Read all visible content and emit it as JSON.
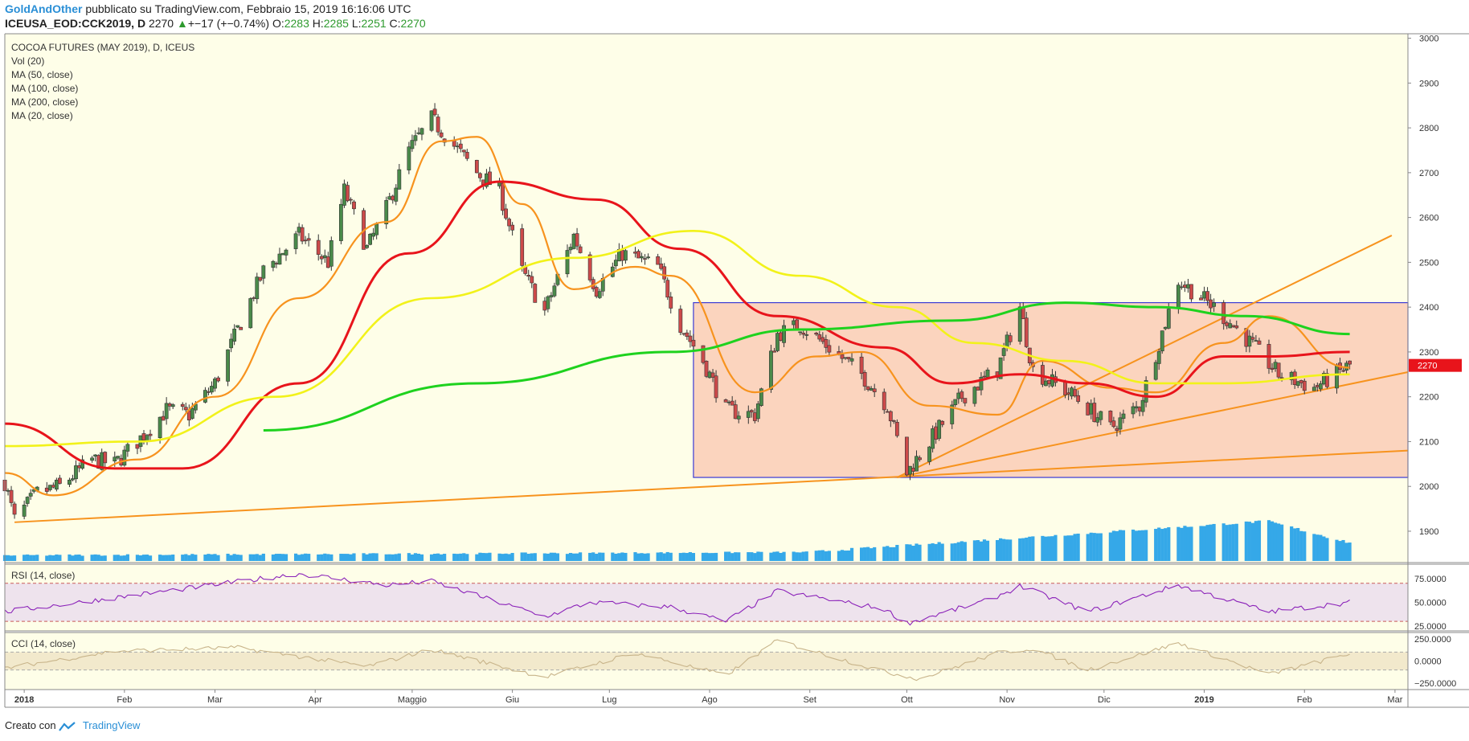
{
  "header": {
    "author": "GoldAndOther",
    "published": "pubblicato su TradingView.com, Febbraio 15, 2019 16:16:06 UTC",
    "symbol": "ICEUSA_EOD:CCK2019, D",
    "last": "2270",
    "change_arrow": "▲",
    "change": "+−17 (+−0.74%)",
    "o_label": "O:",
    "o": "2283",
    "h_label": "H:",
    "h": "2285",
    "l_label": "L:",
    "l": "2251",
    "c_label": "C:",
    "c": "2270"
  },
  "legend": [
    "COCOA FUTURES (MAY 2019), D, ICEUS",
    "Vol (20)",
    "MA (50, close)",
    "MA (100, close)",
    "MA (200, close)",
    "MA (20, close)"
  ],
  "panes": {
    "rsi_title": "RSI (14, close)",
    "cci_title": "CCI (14, close)"
  },
  "footer": {
    "created_with": "Creato con",
    "tradingview": "TradingView"
  },
  "colors": {
    "background": "#fefee8",
    "up_candle": "#4a8a4a",
    "down_candle": "#cc4a4a",
    "ma20": "#f7931e",
    "ma50": "#e8141b",
    "ma100": "#f2f21a",
    "ma200": "#1ed21e",
    "trend_lines": "#f7931e",
    "range_box_fill": "#f9c6b0",
    "range_box_border": "#3a3ad6",
    "volume": "#35a8e8",
    "rsi_line": "#8b22b9",
    "cci_line": "#c8b48a",
    "last_price_tag": "#e8141b"
  },
  "chart_data": [
    {
      "type": "candlestick",
      "title": "COCOA FUTURES (MAY 2019), D, ICEUS",
      "x_axis": {
        "type": "date",
        "tick_labels": [
          "2018",
          "Feb",
          "Mar",
          "Apr",
          "Maggio",
          "Giu",
          "Lug",
          "Ago",
          "Set",
          "Ott",
          "Nov",
          "Dic",
          "2019",
          "Feb",
          "Mar"
        ],
        "range": [
          "2017-12-26",
          "2019-03-05"
        ]
      },
      "y_axis": {
        "ylim": [
          1830,
          3010
        ],
        "tick_labels": [
          "1900",
          "2000",
          "2100",
          "2200",
          "2300",
          "2400",
          "2500",
          "2600",
          "2700",
          "2800",
          "2900",
          "3000"
        ]
      },
      "last_price": "2270",
      "close_path": [
        [
          "2017-12-26",
          2010
        ],
        [
          "2017-12-29",
          1925
        ],
        [
          "2018-01-05",
          1985
        ],
        [
          "2018-01-12",
          2000
        ],
        [
          "2018-01-22",
          2060
        ],
        [
          "2018-01-29",
          2050
        ],
        [
          "2018-02-05",
          2100
        ],
        [
          "2018-02-14",
          2170
        ],
        [
          "2018-02-21",
          2160
        ],
        [
          "2018-03-01",
          2230
        ],
        [
          "2018-03-08",
          2350
        ],
        [
          "2018-03-16",
          2480
        ],
        [
          "2018-03-27",
          2560
        ],
        [
          "2018-04-05",
          2500
        ],
        [
          "2018-04-10",
          2660
        ],
        [
          "2018-04-17",
          2530
        ],
        [
          "2018-04-23",
          2620
        ],
        [
          "2018-04-30",
          2750
        ],
        [
          "2018-05-07",
          2820
        ],
        [
          "2018-05-14",
          2760
        ],
        [
          "2018-05-21",
          2700
        ],
        [
          "2018-05-28",
          2660
        ],
        [
          "2018-06-04",
          2480
        ],
        [
          "2018-06-11",
          2390
        ],
        [
          "2018-06-20",
          2560
        ],
        [
          "2018-06-27",
          2440
        ],
        [
          "2018-07-05",
          2520
        ],
        [
          "2018-07-16",
          2490
        ],
        [
          "2018-07-23",
          2360
        ],
        [
          "2018-07-30",
          2280
        ],
        [
          "2018-08-06",
          2170
        ],
        [
          "2018-08-15",
          2160
        ],
        [
          "2018-08-22",
          2340
        ],
        [
          "2018-08-29",
          2360
        ],
        [
          "2018-09-07",
          2310
        ],
        [
          "2018-09-17",
          2250
        ],
        [
          "2018-09-25",
          2180
        ],
        [
          "2018-10-01",
          2030
        ],
        [
          "2018-10-08",
          2100
        ],
        [
          "2018-10-18",
          2200
        ],
        [
          "2018-10-29",
          2260
        ],
        [
          "2018-11-05",
          2400
        ],
        [
          "2018-11-09",
          2260
        ],
        [
          "2018-11-22",
          2200
        ],
        [
          "2018-12-03",
          2130
        ],
        [
          "2018-12-12",
          2180
        ],
        [
          "2018-12-24",
          2460
        ],
        [
          "2019-01-04",
          2400
        ],
        [
          "2019-01-14",
          2330
        ],
        [
          "2019-01-24",
          2250
        ],
        [
          "2019-02-04",
          2220
        ],
        [
          "2019-02-15",
          2270
        ]
      ],
      "moving_averages": [
        {
          "name": "MA (20, close)",
          "values": [
            [
              "2017-12-26",
              2030
            ],
            [
              "2018-01-10",
              1980
            ],
            [
              "2018-02-05",
              2060
            ],
            [
              "2018-03-01",
              2200
            ],
            [
              "2018-03-27",
              2420
            ],
            [
              "2018-04-23",
              2590
            ],
            [
              "2018-05-10",
              2770
            ],
            [
              "2018-05-21",
              2780
            ],
            [
              "2018-06-04",
              2630
            ],
            [
              "2018-06-20",
              2440
            ],
            [
              "2018-07-09",
              2490
            ],
            [
              "2018-07-20",
              2470
            ],
            [
              "2018-08-15",
              2210
            ],
            [
              "2018-09-03",
              2290
            ],
            [
              "2018-09-17",
              2300
            ],
            [
              "2018-10-08",
              2180
            ],
            [
              "2018-10-29",
              2160
            ],
            [
              "2018-11-12",
              2280
            ],
            [
              "2018-12-03",
              2220
            ],
            [
              "2018-12-17",
              2210
            ],
            [
              "2019-01-07",
              2320
            ],
            [
              "2019-01-21",
              2380
            ],
            [
              "2019-02-15",
              2265
            ]
          ]
        },
        {
          "name": "MA (50, close)",
          "values": [
            [
              "2017-12-26",
              2140
            ],
            [
              "2018-01-29",
              2040
            ],
            [
              "2018-02-19",
              2040
            ],
            [
              "2018-03-27",
              2230
            ],
            [
              "2018-04-30",
              2520
            ],
            [
              "2018-05-28",
              2680
            ],
            [
              "2018-06-27",
              2640
            ],
            [
              "2018-07-23",
              2530
            ],
            [
              "2018-08-22",
              2380
            ],
            [
              "2018-09-24",
              2310
            ],
            [
              "2018-10-15",
              2230
            ],
            [
              "2018-11-05",
              2250
            ],
            [
              "2018-11-26",
              2230
            ],
            [
              "2018-12-17",
              2200
            ],
            [
              "2019-01-07",
              2290
            ],
            [
              "2019-01-21",
              2290
            ],
            [
              "2019-02-15",
              2300
            ]
          ]
        },
        {
          "name": "MA (100, close)",
          "values": [
            [
              "2017-12-26",
              2090
            ],
            [
              "2018-02-05",
              2100
            ],
            [
              "2018-03-20",
              2200
            ],
            [
              "2018-05-07",
              2420
            ],
            [
              "2018-06-20",
              2510
            ],
            [
              "2018-07-27",
              2570
            ],
            [
              "2018-08-29",
              2470
            ],
            [
              "2018-09-28",
              2400
            ],
            [
              "2018-10-22",
              2320
            ],
            [
              "2018-11-19",
              2280
            ],
            [
              "2018-12-17",
              2230
            ],
            [
              "2019-01-07",
              2230
            ],
            [
              "2019-02-15",
              2250
            ]
          ]
        },
        {
          "name": "MA (200, close)",
          "values": [
            [
              "2018-03-16",
              2125
            ],
            [
              "2018-05-21",
              2230
            ],
            [
              "2018-07-20",
              2300
            ],
            [
              "2018-08-29",
              2350
            ],
            [
              "2018-10-15",
              2370
            ],
            [
              "2018-11-19",
              2410
            ],
            [
              "2018-12-17",
              2400
            ],
            [
              "2019-01-14",
              2380
            ],
            [
              "2019-02-15",
              2340
            ]
          ]
        }
      ],
      "trend_lines": [
        [
          [
            "2017-12-29",
            1920
          ],
          [
            "2019-03-05",
            2080
          ]
        ],
        [
          [
            "2018-09-28",
            2020
          ],
          [
            "2019-02-28",
            2560
          ]
        ],
        [
          [
            "2018-09-28",
            2020
          ],
          [
            "2019-03-05",
            2255
          ]
        ]
      ],
      "range_box": {
        "x_range": [
          "2018-07-27",
          "2019-03-05"
        ],
        "y_range": [
          2020,
          2410
        ]
      }
    },
    {
      "type": "bar",
      "title": "Vol (20)",
      "x_range": [
        "2017-12-26",
        "2019-02-15"
      ],
      "trend": "low through mid-2018, rising from September, peak near mid-January 2019"
    },
    {
      "type": "line",
      "title": "RSI (14, close)",
      "y_axis": {
        "tick_labels": [
          "75.0000",
          "50.0000",
          "25.0000"
        ]
      },
      "band": [
        30,
        70
      ],
      "points": [
        [
          "2017-12-26",
          40
        ],
        [
          "2018-02-10",
          60
        ],
        [
          "2018-03-27",
          80
        ],
        [
          "2018-04-23",
          68
        ],
        [
          "2018-05-07",
          72
        ],
        [
          "2018-06-11",
          35
        ],
        [
          "2018-06-25",
          50
        ],
        [
          "2018-07-20",
          45
        ],
        [
          "2018-08-06",
          30
        ],
        [
          "2018-08-22",
          62
        ],
        [
          "2018-09-24",
          43
        ],
        [
          "2018-10-01",
          28
        ],
        [
          "2018-10-26",
          52
        ],
        [
          "2018-11-05",
          67
        ],
        [
          "2018-11-26",
          40
        ],
        [
          "2018-12-24",
          68
        ],
        [
          "2019-01-21",
          40
        ],
        [
          "2019-02-15",
          50
        ]
      ]
    },
    {
      "type": "line",
      "title": "CCI (14, close)",
      "y_axis": {
        "tick_labels": [
          "250.0000",
          "0.0000",
          "−250.0000"
        ]
      },
      "band": [
        -100,
        100
      ],
      "points": [
        [
          "2017-12-26",
          -80
        ],
        [
          "2018-01-29",
          110
        ],
        [
          "2018-03-08",
          150
        ],
        [
          "2018-04-17",
          -60
        ],
        [
          "2018-05-07",
          130
        ],
        [
          "2018-06-11",
          -180
        ],
        [
          "2018-07-09",
          90
        ],
        [
          "2018-08-06",
          -160
        ],
        [
          "2018-08-22",
          230
        ],
        [
          "2018-09-24",
          -120
        ],
        [
          "2018-10-05",
          -200
        ],
        [
          "2018-10-29",
          90
        ],
        [
          "2018-11-09",
          140
        ],
        [
          "2018-11-26",
          -100
        ],
        [
          "2018-12-24",
          200
        ],
        [
          "2019-01-21",
          -150
        ],
        [
          "2019-02-15",
          80
        ]
      ]
    }
  ]
}
